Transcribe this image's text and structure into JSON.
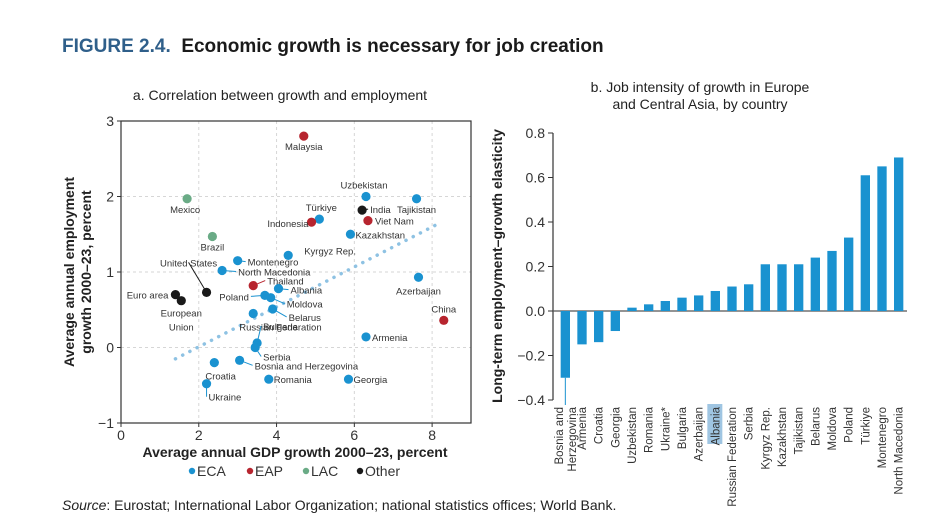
{
  "figure": {
    "number": "FIGURE 2.4.",
    "title": "Economic growth is necessary for job creation"
  },
  "source": {
    "label": "Source",
    "text": ": Eurostat; International Labor Organization; national statistics offices; World Bank."
  },
  "colors": {
    "ECA": "#1a92d0",
    "EAP": "#b7252f",
    "LAC": "#6aab86",
    "Other": "#1a1a1a",
    "bar": "#1a92d0",
    "trend": "#8ec2e3",
    "highlight": "#9fc5e2",
    "figure_number": "#2f5f8a"
  },
  "chart_data": [
    {
      "type": "scatter",
      "title": "a. Correlation between growth and employment",
      "xlabel": "Average annual GDP growth 2000–23, percent",
      "ylabel": "Average annual employment growth 2000–23, percent",
      "ylabel_lines": [
        "Average annual employment",
        "growth 2000–23, percent"
      ],
      "xlim": [
        0,
        9
      ],
      "ylim": [
        -1,
        3
      ],
      "xticks": [
        0,
        2,
        4,
        6,
        8
      ],
      "yticks": [
        -1,
        0,
        1,
        2,
        3
      ],
      "ytick_labels": [
        "−1",
        "0",
        "1",
        "2",
        "3"
      ],
      "grid": true,
      "legend": {
        "placement": "bottom",
        "entries": [
          {
            "key": "ECA",
            "label": "ECA"
          },
          {
            "key": "EAP",
            "label": "EAP"
          },
          {
            "key": "LAC",
            "label": "LAC"
          },
          {
            "key": "Other",
            "label": "Other"
          }
        ]
      },
      "trendline": {
        "style": "dotted",
        "x": [
          1.4,
          8.2
        ],
        "y": [
          -0.15,
          1.65
        ]
      },
      "points": [
        {
          "name": "Malaysia",
          "group": "EAP",
          "x": 4.7,
          "y": 2.8
        },
        {
          "name": "Mexico",
          "group": "LAC",
          "x": 1.7,
          "y": 1.97
        },
        {
          "name": "Uzbekistan",
          "group": "ECA",
          "x": 6.3,
          "y": 2.0
        },
        {
          "name": "Tajikistan",
          "group": "ECA",
          "x": 7.6,
          "y": 1.97
        },
        {
          "name": "India",
          "group": "Other",
          "x": 6.2,
          "y": 1.82
        },
        {
          "name": "Viet Nam",
          "group": "EAP",
          "x": 6.35,
          "y": 1.68
        },
        {
          "name": "Türkiye",
          "group": "ECA",
          "x": 5.1,
          "y": 1.7
        },
        {
          "name": "Indonesia",
          "group": "EAP",
          "x": 4.9,
          "y": 1.66
        },
        {
          "name": "Kazakhstan",
          "group": "ECA",
          "x": 5.9,
          "y": 1.5
        },
        {
          "name": "Brazil",
          "group": "LAC",
          "x": 2.35,
          "y": 1.47
        },
        {
          "name": "Kyrgyz Rep.",
          "group": "ECA",
          "x": 4.3,
          "y": 1.22
        },
        {
          "name": "Montenegro",
          "group": "ECA",
          "x": 3.0,
          "y": 1.15
        },
        {
          "name": "North Macedonia",
          "group": "ECA",
          "x": 2.6,
          "y": 1.02
        },
        {
          "name": "Thailand",
          "group": "EAP",
          "x": 3.4,
          "y": 0.82
        },
        {
          "name": "Albania",
          "group": "ECA",
          "x": 4.05,
          "y": 0.78
        },
        {
          "name": "United States",
          "group": "Other",
          "x": 2.2,
          "y": 0.73
        },
        {
          "name": "Euro area",
          "group": "Other",
          "x": 1.4,
          "y": 0.7
        },
        {
          "name": "European Union",
          "group": "Other",
          "x": 1.55,
          "y": 0.62
        },
        {
          "name": "Poland",
          "group": "ECA",
          "x": 3.7,
          "y": 0.69
        },
        {
          "name": "Moldova",
          "group": "ECA",
          "x": 3.85,
          "y": 0.66
        },
        {
          "name": "Belarus",
          "group": "ECA",
          "x": 3.9,
          "y": 0.51
        },
        {
          "name": "Russian Federation",
          "group": "ECA",
          "x": 3.4,
          "y": 0.45
        },
        {
          "name": "Azerbaijan",
          "group": "ECA",
          "x": 7.65,
          "y": 0.93
        },
        {
          "name": "China",
          "group": "EAP",
          "x": 8.3,
          "y": 0.36
        },
        {
          "name": "Armenia",
          "group": "ECA",
          "x": 6.3,
          "y": 0.14
        },
        {
          "name": "Bulgaria",
          "group": "ECA",
          "x": 3.5,
          "y": 0.06
        },
        {
          "name": "Serbia",
          "group": "ECA",
          "x": 3.45,
          "y": 0.0
        },
        {
          "name": "Croatia",
          "group": "ECA",
          "x": 2.4,
          "y": -0.2
        },
        {
          "name": "Bosnia and Herzegovina",
          "group": "ECA",
          "x": 3.05,
          "y": -0.17
        },
        {
          "name": "Romania",
          "group": "ECA",
          "x": 3.8,
          "y": -0.42
        },
        {
          "name": "Georgia",
          "group": "ECA",
          "x": 5.85,
          "y": -0.42
        },
        {
          "name": "Ukraine",
          "group": "ECA",
          "x": 2.2,
          "y": -0.48
        }
      ]
    },
    {
      "type": "bar",
      "title": "b. Job intensity of growth in Europe and Central Asia, by country",
      "title_lines": [
        "b. Job intensity of growth in Europe",
        "and Central Asia, by country"
      ],
      "xlabel": "",
      "ylabel": "Long-term employment–growth elasticity",
      "ylim": [
        -0.4,
        0.8
      ],
      "yticks": [
        -0.4,
        -0.2,
        0.0,
        0.2,
        0.4,
        0.6,
        0.8
      ],
      "ytick_labels": [
        "−0.4",
        "−0.2",
        "0.0",
        "0.2",
        "0.4",
        "0.6",
        "0.8"
      ],
      "grid": false,
      "highlighted_category": "Albania",
      "categories": [
        "Bosnia and Herzegovina",
        "Armenia",
        "Croatia",
        "Georgia",
        "Uzbekistan",
        "Romania",
        "Ukraine*",
        "Bulgaria",
        "Azerbaijan",
        "Albania",
        "Russian Federation",
        "Serbia",
        "Kyrgyz Rep.",
        "Kazakhstan",
        "Tajikistan",
        "Belarus",
        "Moldova",
        "Poland",
        "Türkiye",
        "Montenegro",
        "North Macedonia"
      ],
      "category_lines": [
        [
          "Bosnia and",
          "Herzegovina"
        ],
        [
          "Armenia"
        ],
        [
          "Croatia"
        ],
        [
          "Georgia"
        ],
        [
          "Uzbekistan"
        ],
        [
          "Romania"
        ],
        [
          "Ukraine*"
        ],
        [
          "Bulgaria"
        ],
        [
          "Azerbaijan"
        ],
        [
          "Albania"
        ],
        [
          "Russian Federation"
        ],
        [
          "Serbia"
        ],
        [
          "Kyrgyz Rep."
        ],
        [
          "Kazakhstan"
        ],
        [
          "Tajikistan"
        ],
        [
          "Belarus"
        ],
        [
          "Moldova"
        ],
        [
          "Poland"
        ],
        [
          "Türkiye"
        ],
        [
          "Montenegro"
        ],
        [
          "North Macedonia"
        ]
      ],
      "values": [
        -0.3,
        -0.15,
        -0.14,
        -0.09,
        0.015,
        0.03,
        0.045,
        0.06,
        0.07,
        0.09,
        0.11,
        0.12,
        0.21,
        0.21,
        0.21,
        0.24,
        0.27,
        0.33,
        0.61,
        0.65,
        0.69
      ]
    }
  ]
}
